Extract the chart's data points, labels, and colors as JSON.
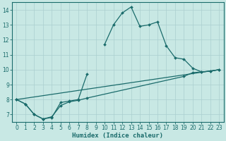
{
  "xlabel": "Humidex (Indice chaleur)",
  "background_color": "#c8e8e4",
  "line_color": "#1a6b6b",
  "xlim": [
    -0.5,
    23.5
  ],
  "ylim": [
    6.5,
    14.5
  ],
  "xticks": [
    0,
    1,
    2,
    3,
    4,
    5,
    6,
    7,
    8,
    9,
    10,
    11,
    12,
    13,
    14,
    15,
    16,
    17,
    18,
    19,
    20,
    21,
    22,
    23
  ],
  "yticks": [
    7,
    8,
    9,
    10,
    11,
    12,
    13,
    14
  ],
  "series0_x": [
    0,
    1,
    2,
    3,
    4,
    5,
    6,
    7,
    8,
    9,
    10,
    11,
    12,
    13,
    14,
    15,
    16,
    17,
    18,
    19,
    20,
    21,
    22,
    23
  ],
  "series0_y": [
    8.0,
    7.7,
    7.0,
    6.7,
    6.8,
    7.8,
    7.9,
    8.0,
    9.7,
    null,
    11.7,
    13.0,
    13.8,
    14.2,
    12.9,
    13.0,
    13.2,
    11.6,
    10.8,
    10.7,
    10.1,
    9.85,
    9.9,
    10.0
  ],
  "series1_x": [
    0,
    1,
    2,
    3,
    4,
    5,
    6,
    7,
    8,
    19,
    20,
    21,
    22,
    23
  ],
  "series1_y": [
    8.0,
    7.7,
    7.0,
    6.7,
    6.85,
    7.6,
    7.85,
    7.95,
    8.1,
    9.55,
    9.8,
    9.85,
    9.9,
    10.0
  ],
  "series2_x": [
    0,
    23
  ],
  "series2_y": [
    8.0,
    10.0
  ]
}
